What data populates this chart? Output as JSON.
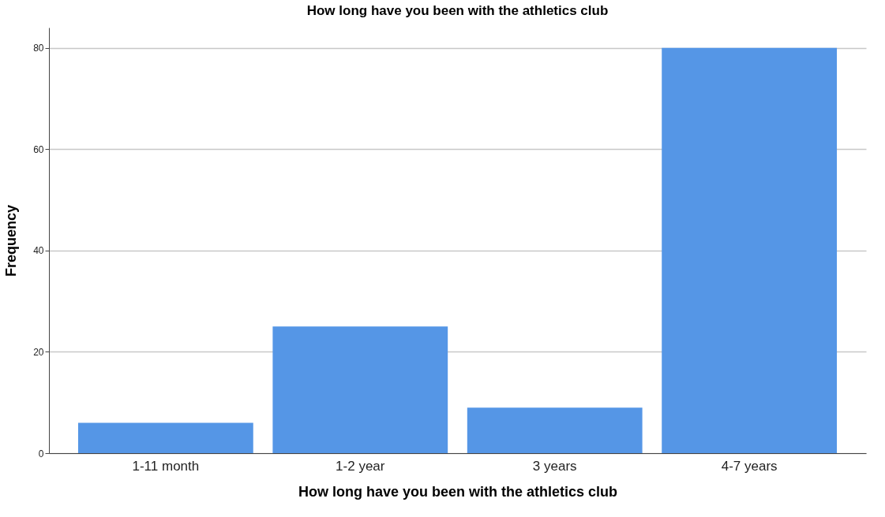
{
  "chart_data": {
    "type": "bar",
    "title": "How long have you been with the athletics club",
    "xlabel": "How long have you been with the athletics club",
    "ylabel": "Frequency",
    "categories": [
      "1-11 month",
      "1-2 year",
      "3 years",
      "4-7 years"
    ],
    "values": [
      6,
      25,
      9,
      80
    ],
    "color": "#5596e6",
    "ylim": [
      0,
      84
    ],
    "yticks": [
      0,
      20,
      40,
      60,
      80
    ],
    "grid": "y"
  }
}
